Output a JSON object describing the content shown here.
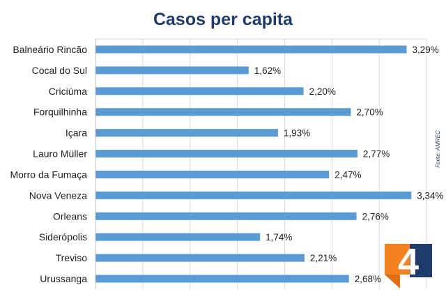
{
  "chart_data": {
    "type": "bar",
    "orientation": "horizontal",
    "title": "Casos per capita",
    "categories": [
      "Balneário Rincão",
      "Cocal do Sul",
      "Criciúma",
      "Forquilhinha",
      "Içara",
      "Lauro Müller",
      "Morro da Fumaça",
      "Nova Veneza",
      "Orleans",
      "Siderópolis",
      "Treviso",
      "Urussanga"
    ],
    "values": [
      3.29,
      1.62,
      2.2,
      2.7,
      1.93,
      2.77,
      2.47,
      3.34,
      2.76,
      1.74,
      2.21,
      2.68
    ],
    "value_labels": [
      "3,29%",
      "1,62%",
      "2,20%",
      "2,70%",
      "1,93%",
      "2,77%",
      "2,47%",
      "3,34%",
      "2,76%",
      "1,74%",
      "2,21%",
      "2,68%"
    ],
    "xlim": [
      0,
      3.5
    ],
    "xlabel": "",
    "ylabel": "",
    "grid": true,
    "legend": "none",
    "bar_color": "#5b9bd5",
    "title_color": "#1f3b6b"
  },
  "source_note": "Fonte: AMREC",
  "logo": {
    "text": "4",
    "name": "portal-4-logo"
  }
}
